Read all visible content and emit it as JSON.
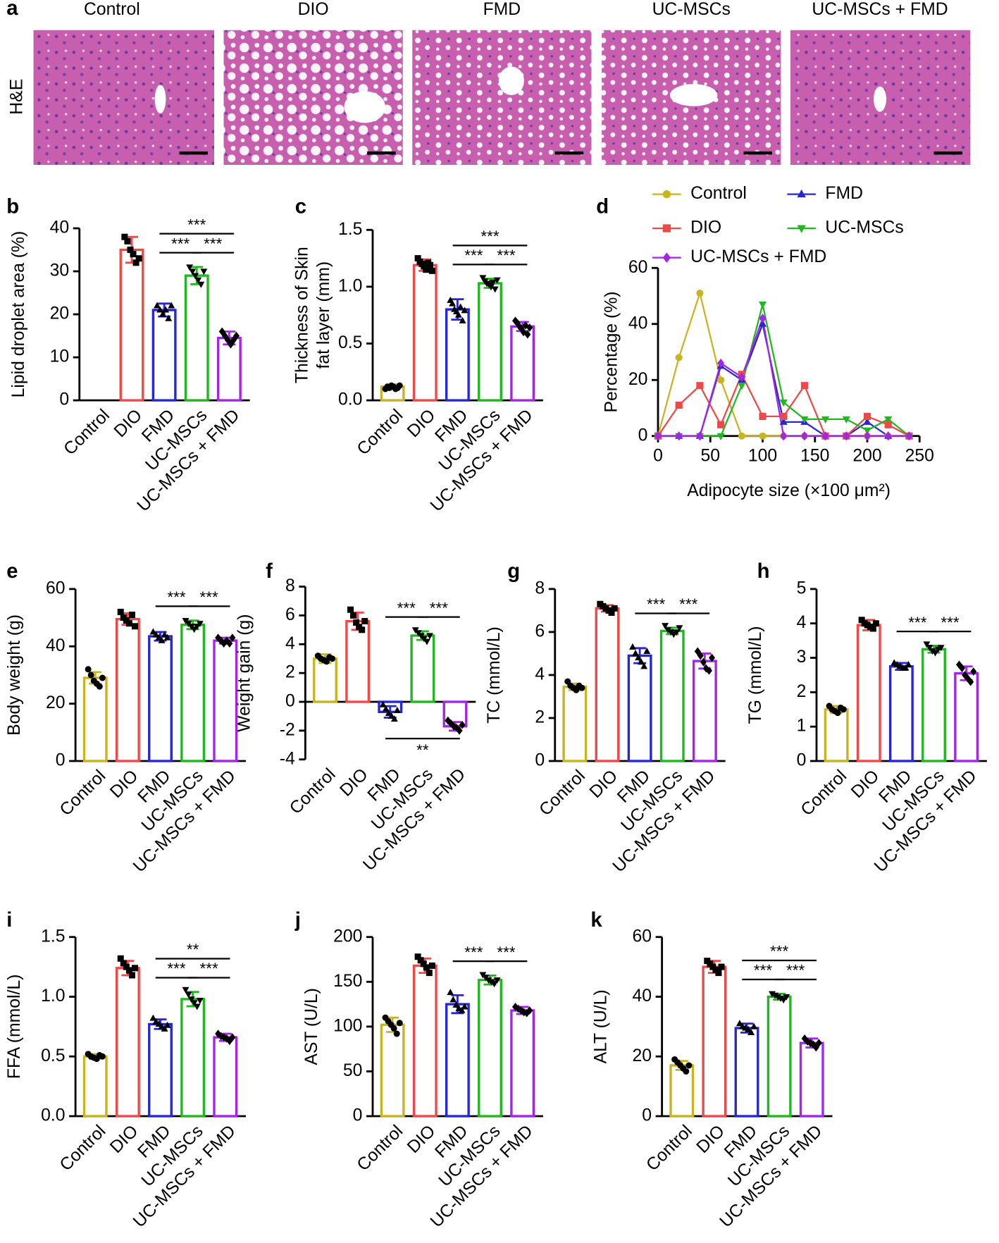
{
  "histology": {
    "panel": "a",
    "stain": "H&E",
    "groups": [
      "Control",
      "DIO",
      "FMD",
      "UC-MSCs",
      "UC-MSCs + FMD"
    ]
  },
  "chart_data": [
    {
      "type": "bar",
      "panel": "b",
      "ylabel": "Lipid droplet area (%)",
      "ylim": [
        0,
        40
      ],
      "yticks": [
        0,
        10,
        20,
        30,
        40
      ],
      "categories": [
        "Control",
        "DIO",
        "FMD",
        "UC-MSCs",
        "UC-MSCs + FMD"
      ],
      "colors": [
        "#c8b41e",
        "#f04848",
        "#2626d4",
        "#1fb81f",
        "#a424e8"
      ],
      "values": [
        null,
        35,
        21,
        29,
        14.5
      ],
      "errors": [
        null,
        3,
        1.5,
        2,
        1.5
      ],
      "points": [
        [],
        [
          38,
          37,
          35,
          34,
          32,
          33
        ],
        [
          22,
          21,
          20,
          21,
          19,
          22
        ],
        [
          31,
          30,
          29,
          28,
          27,
          30
        ],
        [
          16,
          15,
          14,
          13,
          14,
          15
        ]
      ],
      "significance": [
        {
          "from": 2,
          "to": 3,
          "label": "***"
        },
        {
          "from": 3,
          "to": 4,
          "label": "***"
        },
        {
          "from": 2,
          "to": 4,
          "label": "***"
        }
      ]
    },
    {
      "type": "bar",
      "panel": "c",
      "ylabel": [
        "Thickness of Skin",
        "fat layer (mm)"
      ],
      "ylim": [
        0,
        1.5
      ],
      "yticks": [
        {
          "value": 0,
          "label": "0.0"
        },
        0.5,
        {
          "value": 1,
          "label": "1.0"
        },
        1.5
      ],
      "categories": [
        "Control",
        "DIO",
        "FMD",
        "UC-MSCs",
        "UC-MSCs + FMD"
      ],
      "colors": [
        "#c8b41e",
        "#f04848",
        "#2626d4",
        "#1fb81f",
        "#a424e8"
      ],
      "values": [
        0.12,
        1.19,
        0.8,
        1.03,
        0.65
      ],
      "errors": [
        0.02,
        0.05,
        0.09,
        0.04,
        0.04
      ],
      "points": [
        [
          0.1,
          0.12,
          0.11,
          0.13,
          0.12,
          0.1,
          0.11,
          0.13
        ],
        [
          1.25,
          1.22,
          1.2,
          1.18,
          1.15,
          1.21,
          1.19,
          1.14
        ],
        [
          0.88,
          0.85,
          0.8,
          0.78,
          0.75,
          0.82,
          0.7,
          0.79
        ],
        [
          1.08,
          1.05,
          1.03,
          1.02,
          1,
          1.04,
          0.98,
          1.06
        ],
        [
          0.7,
          0.68,
          0.65,
          0.63,
          0.6,
          0.66,
          0.58,
          0.64
        ]
      ],
      "significance": [
        {
          "from": 2,
          "to": 3,
          "label": "***"
        },
        {
          "from": 3,
          "to": 4,
          "label": "***"
        },
        {
          "from": 2,
          "to": 4,
          "label": "***"
        }
      ]
    },
    {
      "type": "line",
      "panel": "d",
      "ylabel": "Percentage (%)",
      "xlabel": "Adipocyte size (×100 μm²)",
      "xlim": [
        0,
        250
      ],
      "xticks": [
        0,
        50,
        100,
        150,
        200,
        250
      ],
      "ylim": [
        0,
        60
      ],
      "yticks": [
        0,
        20,
        40,
        60
      ],
      "x": [
        0,
        20,
        40,
        60,
        80,
        100,
        120,
        140,
        160,
        180,
        200,
        220,
        240
      ],
      "series": [
        {
          "name": "Control",
          "color": "#c8b41e",
          "marker": "circle",
          "values": [
            0,
            28,
            51,
            20,
            0,
            0,
            0,
            0,
            0,
            0,
            0,
            0,
            0
          ]
        },
        {
          "name": "FMD",
          "color": "#2626d4",
          "marker": "triangle",
          "values": [
            0,
            0,
            0,
            25,
            20,
            40,
            5,
            5,
            0,
            0,
            5,
            0,
            0
          ]
        },
        {
          "name": "DIO",
          "color": "#f04848",
          "marker": "square",
          "values": [
            0,
            11,
            18,
            4,
            22,
            7,
            7,
            18,
            0,
            0,
            7,
            4,
            0
          ]
        },
        {
          "name": "UC-MSCs",
          "color": "#1fb81f",
          "marker": "triangle-down",
          "values": [
            0,
            0,
            0,
            0,
            18,
            47,
            12,
            6,
            6,
            6,
            2,
            6,
            0
          ]
        },
        {
          "name": "UC-MSCs + FMD",
          "color": "#a424e8",
          "marker": "diamond",
          "values": [
            0,
            0,
            0,
            26,
            21,
            42,
            0,
            0,
            0,
            0,
            0,
            0,
            0
          ]
        }
      ]
    },
    {
      "type": "bar",
      "panel": "e",
      "ylabel": "Body weight (g)",
      "ylim": [
        0,
        60
      ],
      "yticks": [
        0,
        20,
        40,
        60
      ],
      "categories": [
        "Control",
        "DIO",
        "FMD",
        "UC-MSCs",
        "UC-MSCs + FMD"
      ],
      "colors": [
        "#c8b41e",
        "#f04848",
        "#2626d4",
        "#1fb81f",
        "#a424e8"
      ],
      "values": [
        29,
        49.5,
        43.5,
        47.5,
        42
      ],
      "errors": [
        2,
        2,
        1.5,
        1.5,
        1
      ],
      "points": [
        [
          32,
          30,
          28,
          27,
          26,
          29
        ],
        [
          52,
          50,
          49,
          48,
          51,
          47
        ],
        [
          45,
          44,
          43,
          42,
          44,
          43
        ],
        [
          49,
          48,
          47,
          46,
          47,
          48
        ],
        [
          43,
          42,
          41,
          42,
          41,
          43
        ]
      ],
      "significance": [
        {
          "from": 2,
          "to": 3,
          "label": "***"
        },
        {
          "from": 3,
          "to": 4,
          "label": "***"
        }
      ]
    },
    {
      "type": "bar",
      "panel": "f",
      "ylabel": "Weight gain (g)",
      "ylim": [
        -4,
        8
      ],
      "yticks": [
        -4,
        -2,
        0,
        2,
        4,
        6,
        8
      ],
      "categories": [
        "Control",
        "DIO",
        "FMD",
        "UC-MSCs",
        "UC-MSCs + FMD"
      ],
      "colors": [
        "#c8b41e",
        "#f04848",
        "#2626d4",
        "#1fb81f",
        "#a424e8"
      ],
      "values": [
        3,
        5.6,
        -0.7,
        4.6,
        -1.7
      ],
      "errors": [
        0.3,
        0.6,
        0.4,
        0.3,
        0.3
      ],
      "points": [
        [
          3.2,
          3,
          2.9,
          2.8,
          3.1,
          3
        ],
        [
          6.4,
          6,
          5.5,
          5.2,
          5,
          5.6
        ],
        [
          -0.2,
          -0.5,
          -0.8,
          -1,
          -1.2,
          -0.6
        ],
        [
          5,
          4.8,
          4.6,
          4.4,
          4.2,
          4.6
        ],
        [
          -1.3,
          -1.5,
          -1.7,
          -1.8,
          -2,
          -1.6
        ]
      ],
      "significance": [
        {
          "from": 2,
          "to": 3,
          "label": "***"
        },
        {
          "from": 3,
          "to": 4,
          "label": "***"
        },
        {
          "from": 2,
          "to": 4,
          "label": "**",
          "placement": "below"
        }
      ]
    },
    {
      "type": "bar",
      "panel": "g",
      "ylabel": "TC (mmol/L)",
      "ylim": [
        0,
        8
      ],
      "yticks": [
        0,
        2,
        4,
        6,
        8
      ],
      "categories": [
        "Control",
        "DIO",
        "FMD",
        "UC-MSCs",
        "UC-MSCs + FMD"
      ],
      "colors": [
        "#c8b41e",
        "#f04848",
        "#2626d4",
        "#1fb81f",
        "#a424e8"
      ],
      "values": [
        3.45,
        7.1,
        4.9,
        6.05,
        4.65
      ],
      "errors": [
        0.15,
        0.15,
        0.35,
        0.15,
        0.35
      ],
      "points": [
        [
          3.7,
          3.5,
          3.4,
          3.3,
          3.5,
          3.4
        ],
        [
          7.3,
          7.2,
          7.1,
          7,
          6.9,
          7.1
        ],
        [
          5.3,
          5,
          4.8,
          4.6,
          4.4,
          5.1
        ],
        [
          6.3,
          6.1,
          6,
          5.9,
          6,
          6.2
        ],
        [
          5.1,
          4.9,
          4.6,
          4.3,
          4.2,
          4.8
        ]
      ],
      "significance": [
        {
          "from": 2,
          "to": 3,
          "label": "***"
        },
        {
          "from": 3,
          "to": 4,
          "label": "***"
        }
      ]
    },
    {
      "type": "bar",
      "panel": "h",
      "ylabel": "TG (mmol/L)",
      "ylim": [
        0,
        5
      ],
      "yticks": [
        0,
        1,
        2,
        3,
        4,
        5
      ],
      "categories": [
        "Control",
        "DIO",
        "FMD",
        "UC-MSCs",
        "UC-MSCs + FMD"
      ],
      "colors": [
        "#c8b41e",
        "#f04848",
        "#2626d4",
        "#1fb81f",
        "#a424e8"
      ],
      "values": [
        1.5,
        3.95,
        2.75,
        3.25,
        2.55
      ],
      "errors": [
        0.1,
        0.15,
        0.1,
        0.1,
        0.2
      ],
      "points": [
        [
          1.6,
          1.5,
          1.45,
          1.4,
          1.55,
          1.5
        ],
        [
          4.1,
          4,
          3.95,
          3.9,
          3.85,
          4
        ],
        [
          2.85,
          2.8,
          2.75,
          2.7,
          2.7,
          2.8
        ],
        [
          3.4,
          3.3,
          3.2,
          3.15,
          3.25,
          3.3
        ],
        [
          2.8,
          2.7,
          2.5,
          2.4,
          2.3,
          2.6
        ]
      ],
      "significance": [
        {
          "from": 2,
          "to": 3,
          "label": "***"
        },
        {
          "from": 3,
          "to": 4,
          "label": "***"
        }
      ]
    },
    {
      "type": "bar",
      "panel": "i",
      "ylabel": "FFA (mmol/L)",
      "ylim": [
        0,
        1.5
      ],
      "yticks": [
        {
          "value": 0,
          "label": "0.0"
        },
        0.5,
        {
          "value": 1,
          "label": "1.0"
        },
        1.5
      ],
      "categories": [
        "Control",
        "DIO",
        "FMD",
        "UC-MSCs",
        "UC-MSCs + FMD"
      ],
      "colors": [
        "#c8b41e",
        "#f04848",
        "#2626d4",
        "#1fb81f",
        "#a424e8"
      ],
      "values": [
        0.5,
        1.24,
        0.77,
        0.98,
        0.66
      ],
      "errors": [
        0.02,
        0.06,
        0.04,
        0.06,
        0.03
      ],
      "points": [
        [
          0.52,
          0.5,
          0.49,
          0.48,
          0.51,
          0.5
        ],
        [
          1.32,
          1.28,
          1.25,
          1.22,
          1.18,
          1.24
        ],
        [
          0.82,
          0.79,
          0.77,
          0.75,
          0.73,
          0.76
        ],
        [
          1.06,
          1.02,
          0.98,
          0.95,
          0.92,
          0.97
        ],
        [
          0.69,
          0.67,
          0.66,
          0.65,
          0.63,
          0.66
        ]
      ],
      "significance": [
        {
          "from": 2,
          "to": 3,
          "label": "***"
        },
        {
          "from": 3,
          "to": 4,
          "label": "***"
        },
        {
          "from": 2,
          "to": 4,
          "label": "**"
        }
      ]
    },
    {
      "type": "bar",
      "panel": "j",
      "ylabel": "AST (U/L)",
      "ylim": [
        0,
        200
      ],
      "yticks": [
        0,
        50,
        100,
        150,
        200
      ],
      "categories": [
        "Control",
        "DIO",
        "FMD",
        "UC-MSCs",
        "UC-MSCs + FMD"
      ],
      "colors": [
        "#c8b41e",
        "#f04848",
        "#2626d4",
        "#1fb81f",
        "#a424e8"
      ],
      "values": [
        102,
        168,
        125,
        152,
        118
      ],
      "errors": [
        8,
        8,
        10,
        5,
        4
      ],
      "points": [
        [
          110,
          106,
          102,
          98,
          92,
          104
        ],
        [
          178,
          174,
          170,
          166,
          160,
          168
        ],
        [
          138,
          130,
          124,
          120,
          118,
          122
        ],
        [
          158,
          155,
          152,
          150,
          148,
          152
        ],
        [
          122,
          120,
          118,
          116,
          115,
          118
        ]
      ],
      "significance": [
        {
          "from": 2,
          "to": 3,
          "label": "***"
        },
        {
          "from": 3,
          "to": 4,
          "label": "***"
        }
      ]
    },
    {
      "type": "bar",
      "panel": "k",
      "ylabel": "ALT (U/L)",
      "ylim": [
        0,
        60
      ],
      "yticks": [
        0,
        20,
        40,
        60
      ],
      "categories": [
        "Control",
        "DIO",
        "FMD",
        "UC-MSCs",
        "UC-MSCs + FMD"
      ],
      "colors": [
        "#c8b41e",
        "#f04848",
        "#2626d4",
        "#1fb81f",
        "#a424e8"
      ],
      "values": [
        17,
        50,
        29.5,
        40,
        24.5
      ],
      "errors": [
        1.5,
        2,
        1.5,
        1,
        1.5
      ],
      "points": [
        [
          19,
          18,
          17,
          16,
          15,
          17
        ],
        [
          52,
          51,
          50,
          49,
          48,
          50
        ],
        [
          31,
          30,
          29.5,
          29,
          28,
          30
        ],
        [
          41,
          40.5,
          40,
          39.5,
          39,
          40
        ],
        [
          26,
          25,
          24.5,
          24,
          23,
          24.5
        ]
      ],
      "significance": [
        {
          "from": 2,
          "to": 3,
          "label": "***"
        },
        {
          "from": 3,
          "to": 4,
          "label": "***"
        },
        {
          "from": 2,
          "to": 4,
          "label": "***"
        }
      ]
    }
  ]
}
